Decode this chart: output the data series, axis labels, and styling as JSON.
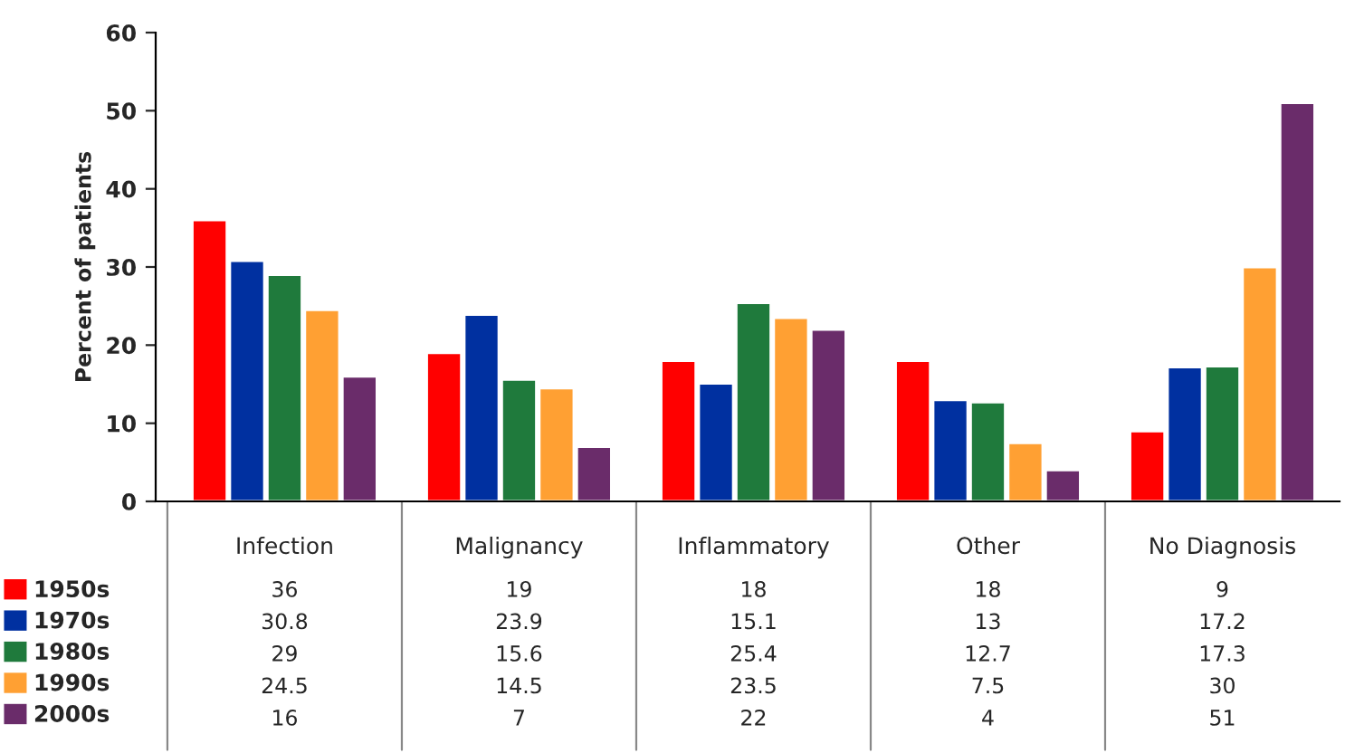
{
  "chart_data": {
    "type": "bar",
    "ylabel": "Percent of patients",
    "categories": [
      "Infection",
      "Malignancy",
      "Inflammatory",
      "Other",
      "No Diagnosis"
    ],
    "series": [
      {
        "name": "1950s",
        "color": "#ff0000",
        "values": [
          36,
          19,
          18,
          18,
          9
        ]
      },
      {
        "name": "1970s",
        "color": "#0030a0",
        "values": [
          30.8,
          23.9,
          15.1,
          13,
          17.2
        ]
      },
      {
        "name": "1980s",
        "color": "#1f7a3c",
        "values": [
          29,
          15.6,
          25.4,
          12.7,
          17.3
        ]
      },
      {
        "name": "1990s",
        "color": "#ffa033",
        "values": [
          24.5,
          14.5,
          23.5,
          7.5,
          30
        ]
      },
      {
        "name": "2000s",
        "color": "#6a2c6a",
        "values": [
          16,
          7,
          22,
          4,
          51
        ]
      }
    ],
    "ylim": [
      0,
      60
    ],
    "yticks": [
      0,
      10,
      20,
      30,
      40,
      50,
      60
    ],
    "data_labels": true,
    "legend": "bottom left",
    "grid": false
  }
}
